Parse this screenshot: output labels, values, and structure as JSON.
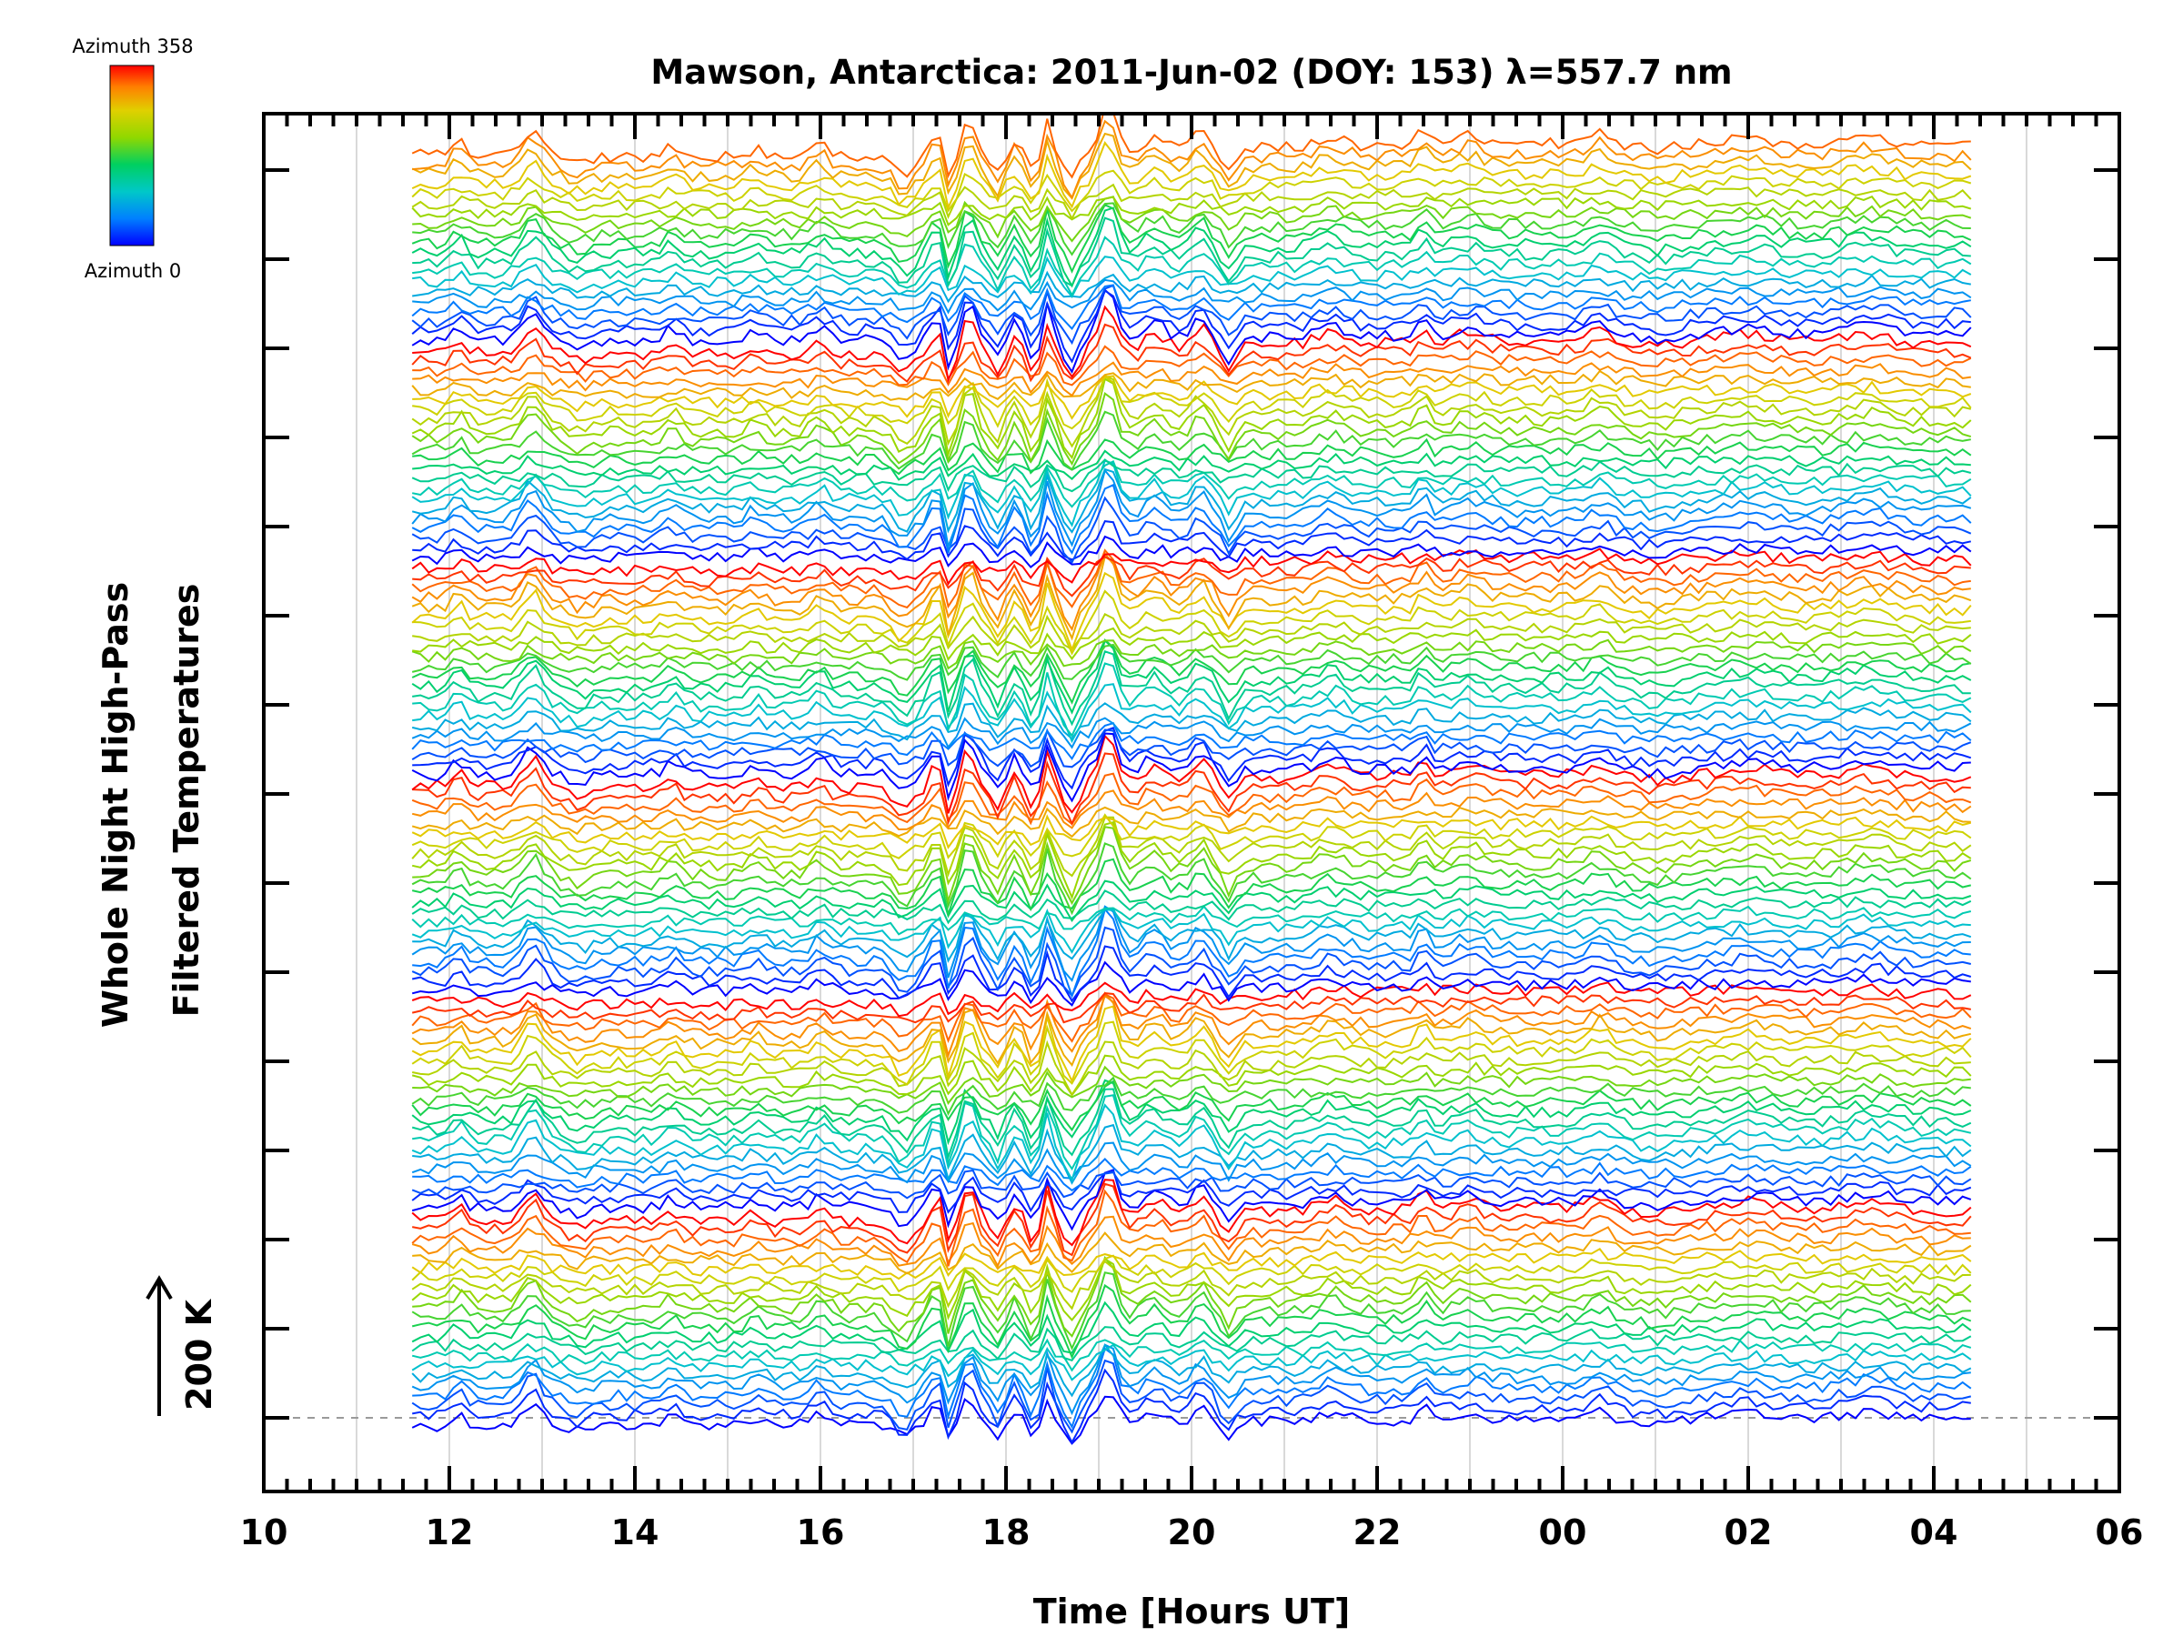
{
  "chart_data": {
    "type": "line",
    "title": "Mawson, Antarctica: 2011-Jun-02 (DOY: 153) λ=557.7 nm",
    "xlabel": "Time [Hours UT]",
    "ylabel_line1": "Whole Night High-Pass",
    "ylabel_line2": "Filtered Temperatures",
    "scale_label": "200 K",
    "colorbar": {
      "top_label": "Azimuth 358",
      "bottom_label": "Azimuth 0",
      "colors": [
        "#0000ff",
        "#0080ff",
        "#00c8c8",
        "#00d060",
        "#90d800",
        "#e0d000",
        "#ff8000",
        "#ff0000"
      ]
    },
    "x_axis": {
      "ticks": [
        "10",
        "12",
        "14",
        "16",
        "18",
        "20",
        "22",
        "00",
        "02",
        "04",
        "06"
      ],
      "range_hours": [
        10,
        30
      ],
      "data_start_hours": 11.6,
      "data_end_hours": 28.4
    },
    "grid": "vertical lines every hour",
    "n_traces": 130,
    "azimuth_range": [
      0,
      358
    ],
    "note_series": "Each trace is one azimuth look direction, offset vertically; colour encodes azimuth."
  }
}
